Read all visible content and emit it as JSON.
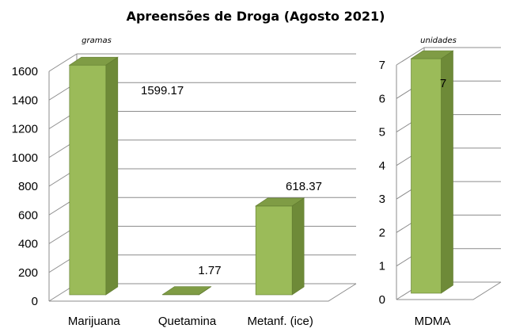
{
  "chart_data": [
    {
      "type": "bar",
      "title": "Apreensões de Droga (Agosto 2021)",
      "unit_label": "gramas",
      "categories": [
        "Marijuana",
        "Quetamina",
        "Metanf. (ice)"
      ],
      "values": [
        1599.17,
        1.77,
        618.37
      ],
      "data_labels": [
        "1599.17",
        "1.77",
        "618.37"
      ],
      "ylim": [
        0,
        1600
      ],
      "yticks": [
        "0",
        "200",
        "400",
        "600",
        "800",
        "1000",
        "1200",
        "1400",
        "1600"
      ],
      "grid": true
    },
    {
      "type": "bar",
      "unit_label": "unidades",
      "categories": [
        "MDMA"
      ],
      "values": [
        7
      ],
      "data_labels": [
        "7"
      ],
      "ylim": [
        0,
        7
      ],
      "yticks": [
        "0",
        "1",
        "2",
        "3",
        "4",
        "5",
        "6",
        "7"
      ],
      "grid": true
    }
  ],
  "colors": {
    "bar_front": "#9bbb59",
    "bar_side": "#6e8a38",
    "bar_top": "#7f9c45",
    "bar_edge": "#5f7a2e",
    "grid": "#8c8c8c"
  }
}
